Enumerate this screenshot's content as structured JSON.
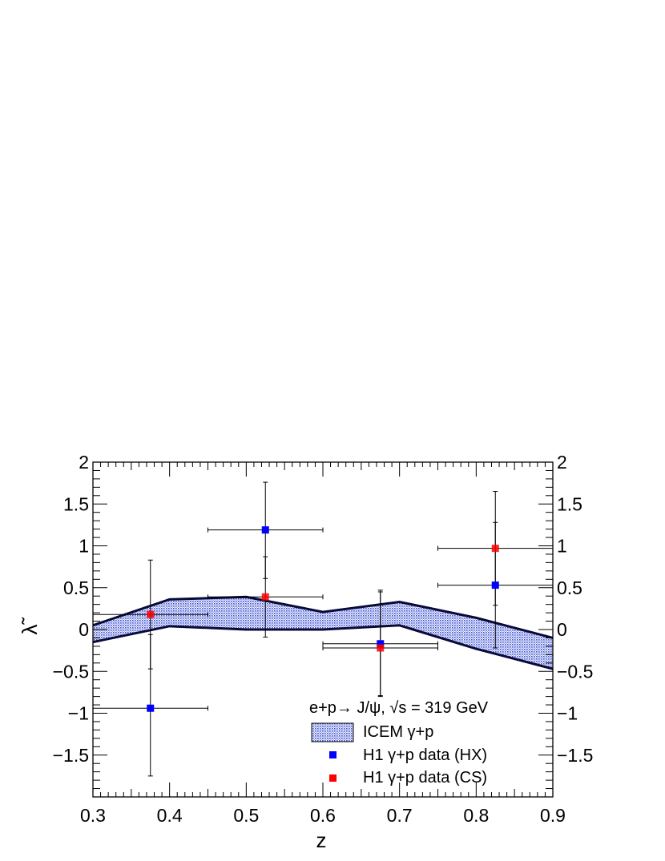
{
  "chart_data": {
    "type": "scatter",
    "xlabel": "z",
    "ylabel": "λ̃",
    "xlim": [
      0.3,
      0.9
    ],
    "ylim": [
      -2.0,
      2.0
    ],
    "x_ticks": [
      "0.3",
      "0.4",
      "0.5",
      "0.6",
      "0.7",
      "0.8",
      "0.9"
    ],
    "y_ticks": [
      "−1.5",
      "−1",
      "−0.5",
      "0",
      "0.5",
      "1",
      "1.5",
      "2"
    ],
    "y_tick_values": [
      -1.5,
      -1,
      -0.5,
      0,
      0.5,
      1,
      1.5,
      2
    ],
    "x_tick_values": [
      0.3,
      0.4,
      0.5,
      0.6,
      0.7,
      0.8,
      0.9
    ],
    "grid": false,
    "legend_position": "bottom-right",
    "legend_header": "e+p→ J/ψ, √s = 319 GeV",
    "band": {
      "name": "ICEM γ+p",
      "color": "#3a4fd0",
      "x": [
        0.3,
        0.4,
        0.5,
        0.6,
        0.7,
        0.8,
        0.9
      ],
      "upper": [
        0.05,
        0.36,
        0.39,
        0.21,
        0.33,
        0.14,
        -0.1
      ],
      "lower": [
        -0.15,
        0.04,
        0.0,
        0.0,
        0.05,
        -0.23,
        -0.47
      ]
    },
    "series": [
      {
        "name": "H1 γ+p data (HX)",
        "color": "#0000ff",
        "x": [
          0.375,
          0.525,
          0.675,
          0.825
        ],
        "y": [
          -0.94,
          1.19,
          -0.17,
          0.53
        ],
        "x_err": [
          0.075,
          0.075,
          0.075,
          0.075
        ],
        "y_err_low": [
          0.81,
          0.58,
          0.63,
          0.75
        ],
        "y_err_high": [
          0.88,
          0.57,
          0.62,
          0.75
        ]
      },
      {
        "name": "H1 γ+p data (CS)",
        "color": "#ff0000",
        "x": [
          0.375,
          0.525,
          0.675,
          0.825
        ],
        "y": [
          0.18,
          0.39,
          -0.22,
          0.97
        ],
        "x_err": [
          0.075,
          0.075,
          0.075,
          0.075
        ],
        "y_err_low": [
          0.65,
          0.48,
          0.57,
          0.68
        ],
        "y_err_high": [
          0.65,
          0.48,
          0.69,
          0.68
        ]
      }
    ]
  }
}
